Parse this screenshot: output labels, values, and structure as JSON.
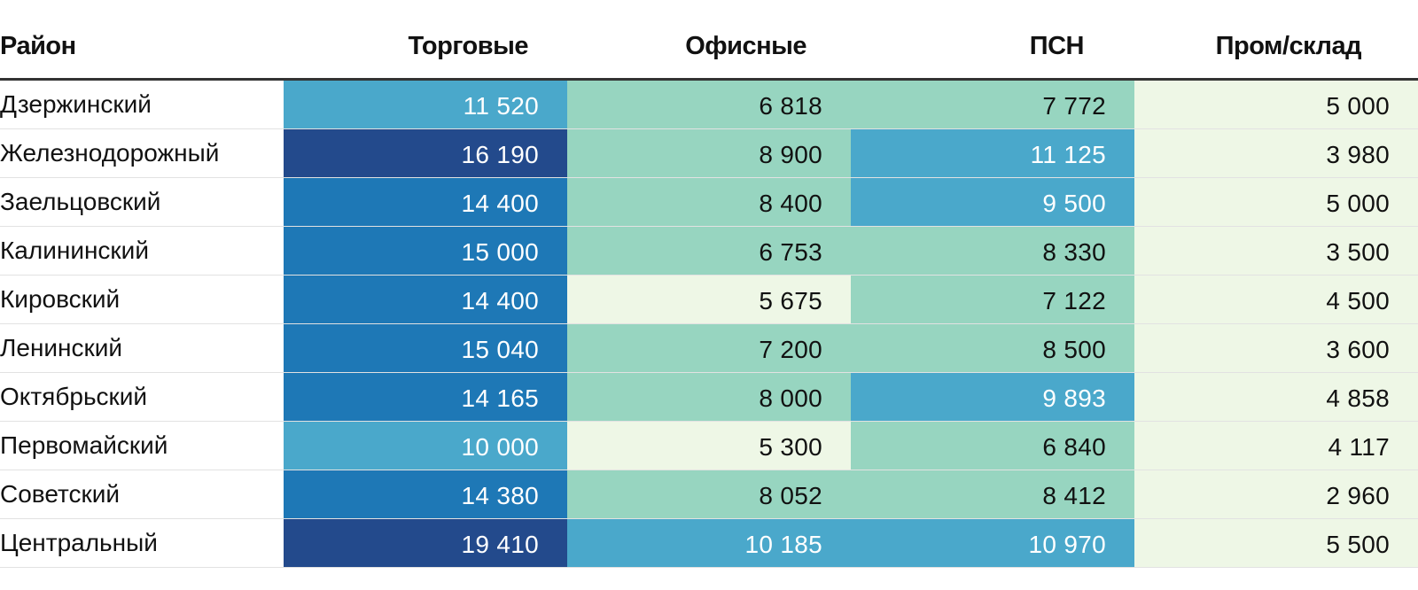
{
  "chart_data": {
    "type": "table",
    "columns": [
      "Район",
      "Торговые",
      "Офисные",
      "ПСН",
      "Пром/склад"
    ],
    "rows": [
      {
        "district": "Дзержинский",
        "values": [
          "11 520",
          "6 818",
          "7 772",
          "5 000"
        ]
      },
      {
        "district": "Железнодорожный",
        "values": [
          "16 190",
          "8 900",
          "11 125",
          "3 980"
        ]
      },
      {
        "district": "Заельцовский",
        "values": [
          "14 400",
          "8 400",
          "9 500",
          "5 000"
        ]
      },
      {
        "district": "Калининский",
        "values": [
          "15 000",
          "6 753",
          "8 330",
          "3 500"
        ]
      },
      {
        "district": "Кировский",
        "values": [
          "14 400",
          "5 675",
          "7 122",
          "4 500"
        ]
      },
      {
        "district": "Ленинский",
        "values": [
          "15 040",
          "7 200",
          "8 500",
          "3 600"
        ]
      },
      {
        "district": "Октябрьский",
        "values": [
          "14 165",
          "8 000",
          "9 893",
          "4 858"
        ]
      },
      {
        "district": "Первомайский",
        "values": [
          "10 000",
          "5 300",
          "6 840",
          "4 117"
        ]
      },
      {
        "district": "Советский",
        "values": [
          "14 380",
          "8 052",
          "8 412",
          "2 960"
        ]
      },
      {
        "district": "Центральный",
        "values": [
          "19 410",
          "10 185",
          "10 970",
          "5 500"
        ]
      }
    ],
    "color_scale": {
      "bins": [
        {
          "max": 6000,
          "bg": "#eef7e6",
          "fg": "#111111"
        },
        {
          "max": 9000,
          "bg": "#97d5c0",
          "fg": "#111111"
        },
        {
          "max": 12000,
          "bg": "#4aa8cb",
          "fg": "#ffffff"
        },
        {
          "max": 15500,
          "bg": "#1e78b6",
          "fg": "#ffffff"
        },
        {
          "max": 999999,
          "bg": "#234a8c",
          "fg": "#ffffff"
        }
      ]
    }
  }
}
